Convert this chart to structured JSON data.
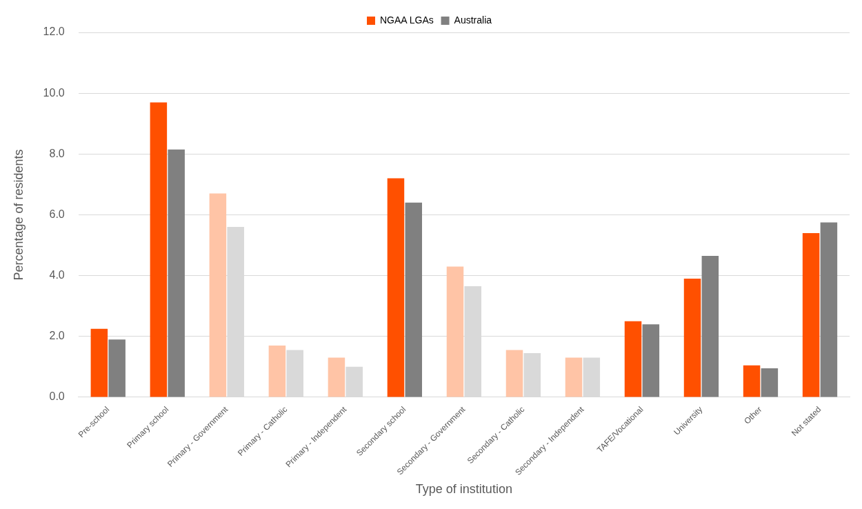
{
  "chart_data": {
    "type": "bar",
    "xlabel": "Type of institution",
    "ylabel": "Percentage of residents",
    "categories": [
      "Pre-school",
      "Primary school",
      "Primary - Government",
      "Primary - Catholic",
      "Primary - Independent",
      "Secondary school",
      "Secondary - Government",
      "Secondary - Catholic",
      "Secondary - Independent",
      "TAFE/Vocational",
      "University",
      "Other",
      "Not stated"
    ],
    "series": [
      {
        "name": "NGAA LGAs",
        "color": "#ff5000",
        "colors": [
          "#ff5000",
          "#ff5000",
          "#ffc4a6",
          "#ffc4a6",
          "#ffc4a6",
          "#ff5000",
          "#ffc4a6",
          "#ffc4a6",
          "#ffc4a6",
          "#ff5000",
          "#ff5000",
          "#ff5000",
          "#ff5000"
        ],
        "values": [
          2.25,
          9.7,
          6.7,
          1.7,
          1.3,
          7.2,
          4.3,
          1.55,
          1.3,
          2.5,
          3.9,
          1.05,
          5.4
        ]
      },
      {
        "name": "Australia",
        "color": "#808080",
        "colors": [
          "#808080",
          "#808080",
          "#d9d9d9",
          "#d9d9d9",
          "#d9d9d9",
          "#808080",
          "#d9d9d9",
          "#d9d9d9",
          "#d9d9d9",
          "#808080",
          "#808080",
          "#808080",
          "#808080"
        ],
        "values": [
          1.9,
          8.15,
          5.6,
          1.55,
          1.0,
          6.4,
          3.65,
          1.45,
          1.3,
          2.4,
          4.65,
          0.95,
          5.75
        ]
      }
    ],
    "ylim": [
      0,
      12
    ],
    "yticks": [
      {
        "value": 0,
        "label": "0.0"
      },
      {
        "value": 2,
        "label": "2.0"
      },
      {
        "value": 4,
        "label": "4.0"
      },
      {
        "value": 6,
        "label": "6.0"
      },
      {
        "value": 8,
        "label": "8.0"
      },
      {
        "value": 10,
        "label": "10.0"
      },
      {
        "value": 12,
        "label": "12.0"
      }
    ],
    "grid": "y",
    "legend": "top"
  }
}
